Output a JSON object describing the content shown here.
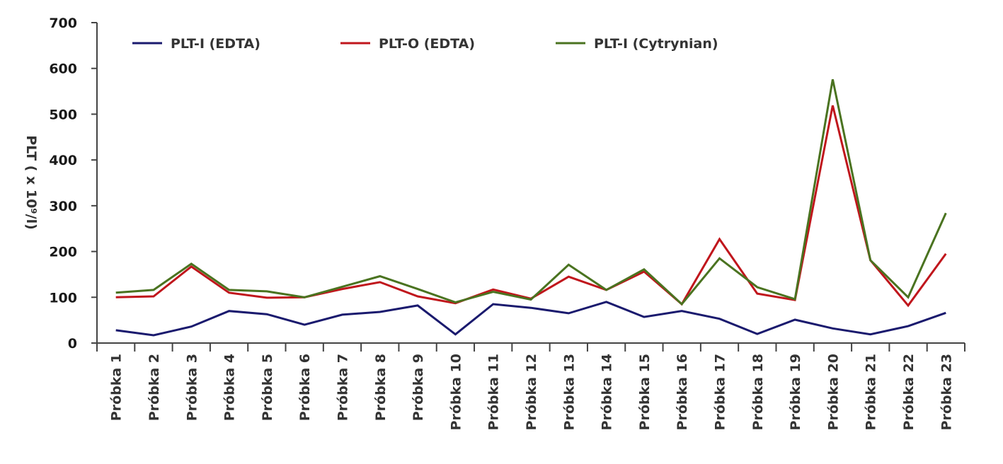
{
  "chart_data": {
    "type": "line",
    "title": "",
    "xlabel": "",
    "ylabel": "PLT ( x 10⁹/l)",
    "ylim": [
      0,
      700
    ],
    "yticks": [
      "0",
      "100",
      "200",
      "300",
      "400",
      "500",
      "600",
      "700"
    ],
    "grid": false,
    "legend_position": "top",
    "categories": [
      "Próbka 1",
      "Próbka 2",
      "Próbka 3",
      "Próbka 4",
      "Próbka 5",
      "Próbka 6",
      "Próbka 7",
      "Próbka 8",
      "Próbka 9",
      "Próbka 10",
      "Próbka 11",
      "Próbka 12",
      "Próbka 13",
      "Próbka 14",
      "Próbka 15",
      "Próbka 16",
      "Próbka 17",
      "Próbka 18",
      "Próbka 19",
      "Próbka 20",
      "Próbka 21",
      "Próbka 22",
      "Próbka 23"
    ],
    "series": [
      {
        "name": "PLT-I (EDTA)",
        "color": "#1a1a6e",
        "values": [
          28,
          17,
          36,
          70,
          63,
          40,
          62,
          68,
          82,
          19,
          85,
          77,
          65,
          90,
          57,
          70,
          53,
          20,
          51,
          32,
          19,
          37,
          66
        ]
      },
      {
        "name": "PLT-O (EDTA)",
        "color": "#c0161c",
        "values": [
          100,
          102,
          167,
          110,
          99,
          100,
          118,
          133,
          102,
          87,
          117,
          97,
          145,
          116,
          156,
          85,
          227,
          108,
          94,
          519,
          181,
          82,
          195
        ]
      },
      {
        "name": "PLT-I (Cytrynian)",
        "color": "#4a7320",
        "values": [
          110,
          116,
          173,
          116,
          113,
          100,
          123,
          146,
          118,
          89,
          112,
          95,
          171,
          116,
          161,
          85,
          185,
          122,
          96,
          576,
          181,
          100,
          284
        ]
      }
    ]
  }
}
